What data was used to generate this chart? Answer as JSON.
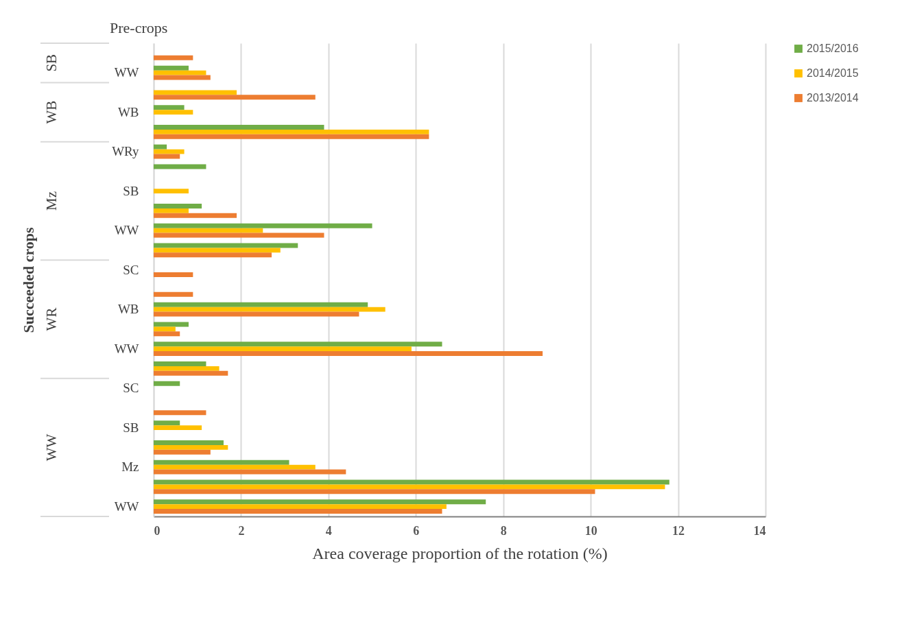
{
  "chart_data": {
    "type": "bar",
    "orientation": "horizontal",
    "xlabel": "Area coverage proportion of the rotation (%)",
    "ylabel": "Succeeded crops",
    "annotations": [
      "Pre-crops",
      "SB",
      "WB",
      "Mz",
      "WR",
      "WW"
    ],
    "categories": [
      null,
      "WW",
      null,
      "WB",
      null,
      "WRy",
      null,
      "SB",
      null,
      "WW",
      null,
      "SC",
      null,
      "WB",
      null,
      "WW",
      null,
      "SC",
      null,
      "SB",
      null,
      "Mz",
      null,
      "WW"
    ],
    "series": [
      {
        "name": "2015/2016",
        "color": "#70ad47",
        "values": [
          null,
          0.8,
          null,
          0.7,
          3.9,
          0.3,
          1.2,
          null,
          1.1,
          5.0,
          3.3,
          null,
          null,
          4.9,
          0.8,
          6.6,
          1.2,
          0.6,
          null,
          0.6,
          1.6,
          3.1,
          11.8,
          7.6
        ]
      },
      {
        "name": "2014/2015",
        "color": "#ffc000",
        "values": [
          null,
          1.2,
          1.9,
          0.9,
          6.3,
          0.7,
          null,
          0.8,
          0.8,
          2.5,
          2.9,
          null,
          null,
          5.3,
          0.5,
          5.9,
          1.5,
          null,
          null,
          1.1,
          1.7,
          3.7,
          11.7,
          6.7
        ]
      },
      {
        "name": "2013/2014",
        "color": "#ed7d31",
        "values": [
          0.9,
          1.3,
          3.7,
          null,
          6.3,
          0.6,
          null,
          null,
          1.9,
          3.9,
          2.7,
          0.9,
          0.9,
          4.7,
          0.6,
          8.9,
          1.7,
          null,
          1.2,
          null,
          1.3,
          4.4,
          10.1,
          6.6
        ]
      }
    ],
    "xlim": [
      0,
      14
    ],
    "xticks": [
      0,
      2,
      4,
      6,
      8,
      10,
      12,
      14
    ],
    "grid": "x",
    "legend": "right"
  }
}
